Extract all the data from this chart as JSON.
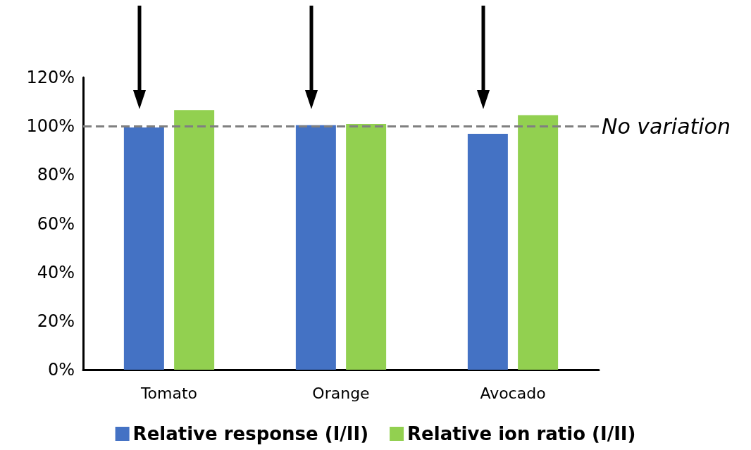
{
  "chart_data": {
    "type": "bar",
    "categories": [
      "Tomato",
      "Orange",
      "Avocado"
    ],
    "series": [
      {
        "name": "Relative response (I/II)",
        "color": "#4472c4",
        "values": [
          99.5,
          100.4,
          96.9
        ]
      },
      {
        "name": "Relative ion ratio (I/II)",
        "color": "#92d050",
        "values": [
          106.6,
          100.9,
          104.5
        ]
      }
    ],
    "ylim": [
      0,
      120
    ],
    "yticks": [
      {
        "value": 0,
        "label": "0%"
      },
      {
        "value": 20,
        "label": "20%"
      },
      {
        "value": 40,
        "label": "40%"
      },
      {
        "value": 60,
        "label": "60%"
      },
      {
        "value": 80,
        "label": "80%"
      },
      {
        "value": 100,
        "label": "100%"
      },
      {
        "value": 120,
        "label": "120%"
      }
    ],
    "ref_lines": [
      {
        "axis": "y",
        "value": 100,
        "label": "No variation",
        "color": "#808080",
        "line_style": "dashed"
      }
    ],
    "grid": false,
    "legend": "bottom"
  }
}
